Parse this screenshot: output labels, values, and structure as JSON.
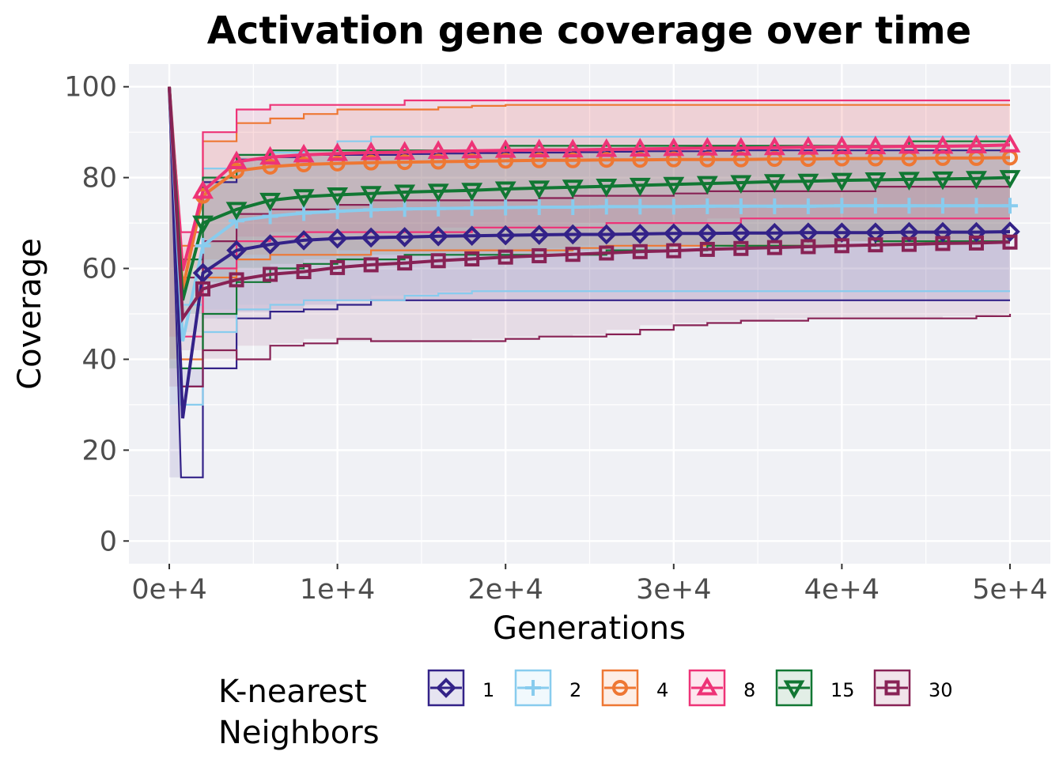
{
  "chart_data": {
    "type": "line",
    "title": "Activation gene coverage over time",
    "xlabel": "Generations",
    "ylabel": "Coverage",
    "xlim": [
      -2400,
      52400
    ],
    "ylim": [
      -5,
      105
    ],
    "x_ticks": [
      0,
      10000,
      20000,
      30000,
      40000,
      50000
    ],
    "x_tick_labels": [
      "0e+4",
      "1e+4",
      "2e+4",
      "3e+4",
      "4e+4",
      "5e+4"
    ],
    "y_ticks": [
      0,
      20,
      40,
      60,
      80,
      100
    ],
    "y_tick_labels": [
      "0",
      "20",
      "40",
      "60",
      "80",
      "100"
    ],
    "grid": true,
    "legend": {
      "title_lines": [
        "K-nearest",
        "Neighbors"
      ],
      "position": "bottom"
    },
    "x": [
      0,
      2000,
      4000,
      6000,
      8000,
      10000,
      12000,
      14000,
      16000,
      18000,
      20000,
      22000,
      24000,
      26000,
      28000,
      30000,
      32000,
      34000,
      36000,
      38000,
      40000,
      42000,
      44000,
      46000,
      48000,
      50000
    ],
    "series": [
      {
        "name": "1",
        "color": "#332288",
        "marker": "diamond",
        "values": [
          100,
          59,
          64,
          65.3,
          66.2,
          66.6,
          66.8,
          66.9,
          67.1,
          67.2,
          67.3,
          67.4,
          67.5,
          67.5,
          67.6,
          67.7,
          67.7,
          67.8,
          67.8,
          67.9,
          67.9,
          67.9,
          68,
          68,
          68,
          68.1
        ],
        "upper": [
          100,
          79,
          84,
          84.5,
          85,
          85,
          85,
          85.2,
          85.3,
          85.4,
          85.5,
          85.5,
          85.6,
          85.7,
          85.8,
          85.8,
          85.9,
          86,
          86,
          86,
          86,
          86,
          86,
          86,
          86,
          86
        ],
        "lower": [
          100,
          38,
          49,
          50.5,
          51,
          52,
          53,
          53,
          53,
          53,
          53,
          53,
          53,
          53,
          53,
          53,
          53,
          53,
          53,
          53,
          53,
          53,
          53,
          53,
          53,
          53
        ]
      },
      {
        "name": "2",
        "color": "#88CCEE",
        "marker": "plus",
        "values": [
          100,
          65,
          70.5,
          71.5,
          72.2,
          72.6,
          72.9,
          73.1,
          73.2,
          73.3,
          73.4,
          73.5,
          73.5,
          73.6,
          73.6,
          73.6,
          73.7,
          73.7,
          73.7,
          73.7,
          73.8,
          73.8,
          73.8,
          73.8,
          73.8,
          73.8
        ],
        "upper": [
          100,
          82,
          85,
          85.5,
          86,
          88,
          89,
          89,
          89,
          89,
          89,
          89,
          89,
          89,
          89,
          89,
          89,
          89,
          89,
          89,
          89,
          89,
          89,
          89,
          89,
          89
        ],
        "lower": [
          100,
          46,
          51,
          52,
          53,
          53,
          53,
          54,
          54.5,
          55,
          55,
          55,
          55,
          55,
          55,
          55,
          55,
          55,
          55,
          55,
          55,
          55,
          55,
          55,
          55,
          55
        ]
      },
      {
        "name": "4",
        "color": "#EE7733",
        "marker": "circle",
        "values": [
          100,
          76,
          81.5,
          82.4,
          82.9,
          83.1,
          83.3,
          83.4,
          83.5,
          83.6,
          83.7,
          83.8,
          83.8,
          83.9,
          83.9,
          84,
          84,
          84,
          84.1,
          84.1,
          84.2,
          84.2,
          84.2,
          84.3,
          84.3,
          84.4
        ],
        "upper": [
          100,
          88,
          92,
          93,
          94,
          95,
          95,
          95,
          95.5,
          95.8,
          96,
          96,
          96,
          96,
          96,
          96,
          96,
          96,
          96,
          96,
          96,
          96,
          96,
          96,
          96,
          96
        ],
        "lower": [
          100,
          58,
          62,
          63,
          63,
          63,
          64,
          64,
          64,
          64,
          64,
          64,
          64.5,
          65,
          65,
          65,
          65,
          65,
          65,
          65,
          65,
          66,
          66,
          66,
          66,
          66
        ]
      },
      {
        "name": "8",
        "color": "#EE3377",
        "marker": "triangle-up",
        "values": [
          100,
          77,
          83.5,
          84.5,
          85,
          85.3,
          85.5,
          85.6,
          85.8,
          85.9,
          86,
          86.1,
          86.1,
          86.2,
          86.3,
          86.4,
          86.5,
          86.5,
          86.6,
          86.7,
          86.8,
          86.8,
          86.9,
          86.9,
          87,
          87.2
        ],
        "upper": [
          100,
          90,
          95,
          96,
          96,
          96,
          96,
          97,
          97,
          97,
          97,
          97,
          97,
          97,
          97,
          97,
          97,
          97,
          97,
          97,
          97,
          97,
          97,
          97,
          97,
          97
        ],
        "lower": [
          100,
          60,
          66,
          67,
          68,
          68,
          68,
          68,
          68,
          69,
          69,
          69,
          69,
          70,
          70,
          70,
          70,
          71,
          71,
          71,
          71,
          71,
          71,
          71,
          71,
          71
        ]
      },
      {
        "name": "15",
        "color": "#117733",
        "marker": "triangle-down",
        "values": [
          100,
          70,
          73,
          75,
          75.8,
          76.2,
          76.5,
          76.8,
          77,
          77.2,
          77.5,
          77.7,
          77.9,
          78.1,
          78.3,
          78.5,
          78.7,
          78.9,
          79.1,
          79.2,
          79.4,
          79.5,
          79.6,
          79.7,
          79.8,
          80
        ],
        "upper": [
          100,
          80,
          85,
          86,
          86,
          86,
          86,
          86,
          86,
          86,
          87,
          87,
          87,
          87,
          87,
          87,
          87,
          87,
          87,
          87,
          87,
          87,
          88,
          88,
          88,
          88
        ],
        "lower": [
          100,
          50,
          57,
          60,
          61,
          62,
          62,
          63,
          63,
          63,
          63,
          63,
          63,
          64,
          64,
          64,
          65,
          65,
          65,
          65,
          65,
          66,
          66,
          66,
          66,
          66
        ]
      },
      {
        "name": "30",
        "color": "#882255",
        "marker": "square",
        "values": [
          100,
          55.5,
          57.5,
          58.7,
          59.3,
          60.2,
          60.8,
          61.2,
          61.7,
          62.1,
          62.5,
          62.8,
          63.1,
          63.4,
          63.7,
          63.9,
          64.2,
          64.4,
          64.6,
          64.8,
          65,
          65.2,
          65.3,
          65.5,
          65.6,
          65.8
        ],
        "upper": [
          100,
          66,
          72,
          73,
          73,
          74,
          75,
          75,
          75,
          75,
          75,
          75.5,
          76,
          76,
          76,
          76.5,
          77,
          77,
          77,
          77,
          77,
          78,
          78,
          78,
          78,
          78
        ],
        "lower": [
          100,
          42,
          40,
          43,
          43.5,
          44.5,
          44,
          44,
          44,
          44,
          44.5,
          45,
          45,
          45.5,
          46.5,
          47.5,
          48,
          48.5,
          48.5,
          49,
          49,
          49,
          49,
          49,
          49.5,
          50
        ]
      }
    ]
  }
}
